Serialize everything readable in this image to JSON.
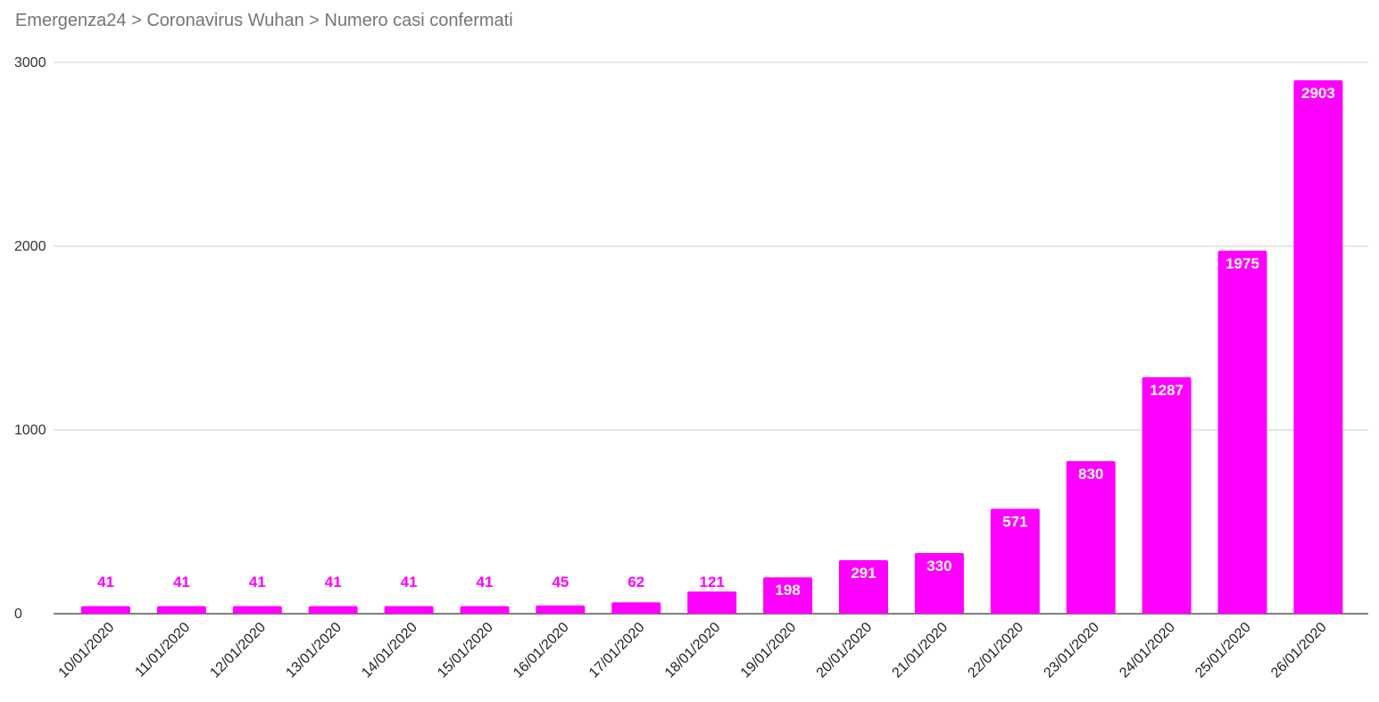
{
  "title": "Emergenza24 > Coronavirus Wuhan > Numero casi confermati",
  "colors": {
    "bar": "#ff00ff",
    "grid": "#cccccc",
    "axis": "#333333",
    "title": "#757575"
  },
  "chart_data": {
    "type": "bar",
    "categories": [
      "10/01/2020",
      "11/01/2020",
      "12/01/2020",
      "13/01/2020",
      "14/01/2020",
      "15/01/2020",
      "16/01/2020",
      "17/01/2020",
      "18/01/2020",
      "19/01/2020",
      "20/01/2020",
      "21/01/2020",
      "22/01/2020",
      "23/01/2020",
      "24/01/2020",
      "25/01/2020",
      "26/01/2020"
    ],
    "values": [
      41,
      41,
      41,
      41,
      41,
      41,
      45,
      62,
      121,
      198,
      291,
      330,
      571,
      830,
      1287,
      1975,
      2903
    ],
    "data_labels": [
      "41",
      "41",
      "41",
      "41",
      "41",
      "41",
      "45",
      "62",
      "121",
      "198",
      "291",
      "330",
      "571",
      "830",
      "1287",
      "1975",
      "2903"
    ],
    "ylim": [
      0,
      3000
    ],
    "yticks": [
      0,
      1000,
      2000,
      3000
    ],
    "ytick_labels": [
      "0",
      "1000",
      "2000",
      "3000"
    ],
    "grid": true,
    "legend": "none"
  }
}
